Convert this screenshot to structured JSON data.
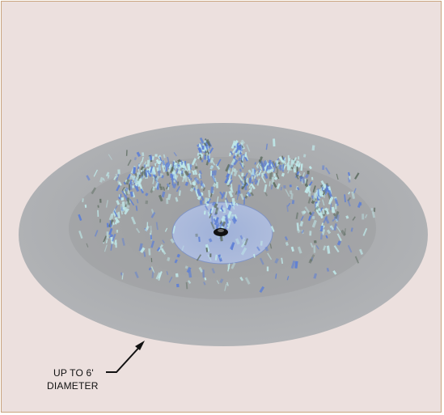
{
  "diagram": {
    "subject": "fountain-spray-pattern",
    "callout": {
      "line1": "UP TO 6'",
      "line2": "DIAMETER"
    },
    "colors": {
      "background": "#ece0de",
      "border": "#c9a47e",
      "basin_outer": "#a9abae",
      "basin_inner": "#9a9c9f",
      "pool": "#a8b8d8",
      "spray_light": "#bfe9ea",
      "spray_blue": "#5d7fd6",
      "spray_dark": "#5e6e62",
      "nozzle": "#111111"
    }
  }
}
